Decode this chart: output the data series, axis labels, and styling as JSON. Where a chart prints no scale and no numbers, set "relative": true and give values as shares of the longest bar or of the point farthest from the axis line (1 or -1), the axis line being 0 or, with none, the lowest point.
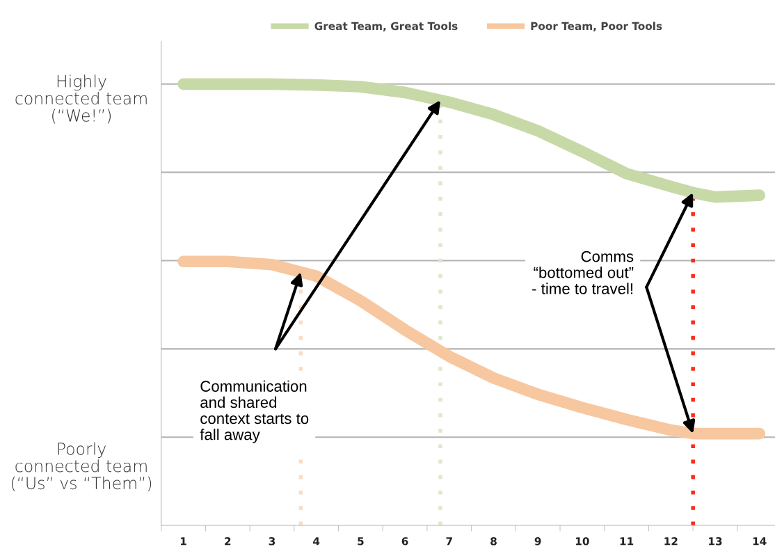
{
  "chart_data": {
    "type": "line",
    "relative": true,
    "x": [
      1,
      2,
      3,
      4,
      5,
      6,
      7,
      8,
      9,
      10,
      11,
      12,
      12.5,
      13,
      14
    ],
    "series": [
      {
        "name": "Great Team, Great Tools",
        "color": "#c8d9a8",
        "values": [
          1.0,
          1.0,
          1.0,
          0.998,
          0.994,
          0.981,
          0.959,
          0.931,
          0.894,
          0.847,
          0.797,
          0.768,
          0.754,
          0.744,
          0.748
        ]
      },
      {
        "name": "Poor Team, Poor Tools",
        "color": "#f7c7a0",
        "values": [
          0.598,
          0.598,
          0.591,
          0.565,
          0.509,
          0.443,
          0.383,
          0.334,
          0.297,
          0.267,
          0.24,
          0.216,
          0.208,
          0.208,
          0.208
        ]
      }
    ],
    "xlim": [
      0.5,
      14.35
    ],
    "xticks": [
      1,
      2,
      3,
      4,
      5,
      6,
      7,
      8,
      9,
      10,
      11,
      12,
      13,
      14,
      {
        "value": 0.5,
        "label": null
      },
      {
        "value": 1.5,
        "label": null
      },
      {
        "value": 2.5,
        "label": null
      },
      {
        "value": 3.5,
        "label": null
      },
      {
        "value": 4.5,
        "label": null
      },
      {
        "value": 5.5,
        "label": null
      },
      {
        "value": 6.5,
        "label": null
      },
      {
        "value": 7.5,
        "label": null
      },
      {
        "value": 8.5,
        "label": null
      },
      {
        "value": 9.5,
        "label": null
      },
      {
        "value": 10.5,
        "label": null
      },
      {
        "value": 11.5,
        "label": null
      },
      {
        "value": 12.5,
        "label": null
      },
      {
        "value": 13.5,
        "label": null
      }
    ],
    "ref_lines": [
      {
        "axis": "x",
        "value": 3.65,
        "color": "#fbdcc3",
        "line_style": "dotted"
      },
      {
        "axis": "x",
        "value": 6.8,
        "color": "#dce9cf",
        "line_style": "dotted"
      },
      {
        "axis": "x",
        "value": 12.5,
        "color": "#ff2a1a",
        "line_style": "dotted"
      },
      {
        "axis": "y",
        "value": 1.0,
        "color": "#b3b3b3",
        "line_style": "solid"
      },
      {
        "axis": "y",
        "value": 0.8,
        "color": "#b3b3b3",
        "line_style": "solid"
      },
      {
        "axis": "y",
        "value": 0.6,
        "color": "#b3b3b3",
        "line_style": "solid"
      },
      {
        "axis": "y",
        "value": 0.4,
        "color": "#b3b3b3",
        "line_style": "solid"
      },
      {
        "axis": "y",
        "value": 0.2,
        "color": "#b3b3b3",
        "line_style": "solid"
      }
    ],
    "annotations": [
      "Highly\nconnected team\n(“We!”)",
      "Poorly\nconnected team\n(“Us” vs “Them”)",
      "Communication\nand shared\ncontext starts to\nfall away",
      "Comms\n“bottomed out”\n- time to travel!"
    ],
    "legend": "top"
  }
}
